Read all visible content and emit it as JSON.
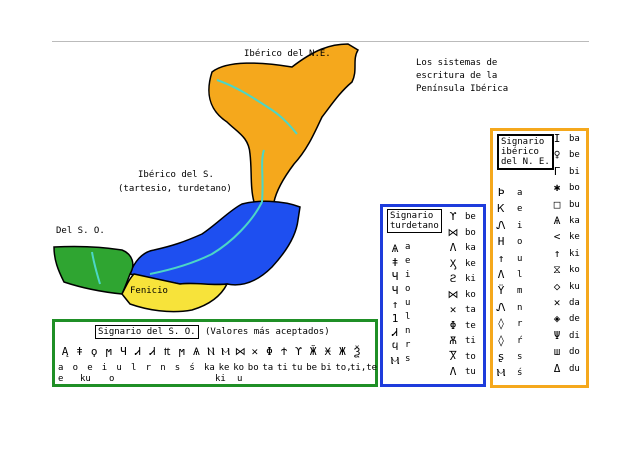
{
  "title_lines": [
    "Los sistemas de",
    "escritura de la",
    "Península Ibérica"
  ],
  "map_labels": {
    "iberico_ne": "Ibérico del N.E.",
    "iberico_s_line1": "Ibérico del S.",
    "iberico_s_line2": "(tartesio, turdetano)",
    "del_so": "Del S. O.",
    "fenicio": "Fenicio"
  },
  "colors": {
    "ne_region": "#f5a81c",
    "south_region": "#1e4ff0",
    "so_region": "#2fa531",
    "fenicio_region": "#f7e33a",
    "river": "#4cd6c6",
    "ne_box": "#f5a81c",
    "turdetano_box": "#1e3cdc",
    "so_box": "#1f8f26"
  },
  "so_panel": {
    "header": "Signario del S. O.",
    "note": "(Valores más aceptados)",
    "glyphs": [
      "Ą",
      "ǂ",
      "ϙ",
      "ϻ",
      "Ч",
      "Ꮧ",
      "Ꮧ",
      "₶",
      "ϻ",
      "Ѧ",
      "Ⲛ",
      "Ⲙ",
      "⋈",
      "✕",
      "Φ",
      "Ϯ",
      "ϒ",
      "Ӂ",
      "Ӿ",
      "Ж",
      "Ѯ"
    ],
    "sounds": [
      "a",
      "o",
      "e",
      "i",
      "u",
      "l",
      "r",
      "n",
      "s",
      "ś",
      "ka",
      "ke",
      "ko",
      "bo",
      "ta",
      "ti",
      "tu",
      "be",
      "bi",
      "to,",
      "ti,te"
    ],
    "sounds_row2": [
      "e",
      "ku",
      "o",
      "ki",
      "u"
    ]
  },
  "turdetano_panel": {
    "header_line1": "Signario",
    "header_line2": "turdetano",
    "vowels": [
      {
        "glyph": "Ѧ",
        "sound": "a"
      },
      {
        "glyph": "ǂ",
        "sound": "e"
      },
      {
        "glyph": "Ч",
        "sound": "i"
      },
      {
        "glyph": "Ч",
        "sound": "o"
      },
      {
        "glyph": "↑",
        "sound": "u"
      },
      {
        "glyph": "1",
        "sound": "l"
      },
      {
        "glyph": "Ꮧ",
        "sound": "n"
      },
      {
        "glyph": "ϥ",
        "sound": "r"
      },
      {
        "glyph": "Ⲙ",
        "sound": "s"
      }
    ],
    "syllables": [
      {
        "glyph": "ϒ",
        "sound": "be"
      },
      {
        "glyph": "⋈",
        "sound": "bo"
      },
      {
        "glyph": "Λ",
        "sound": "ka"
      },
      {
        "glyph": "Ӽ",
        "sound": "ke"
      },
      {
        "glyph": "ϩ",
        "sound": "ki"
      },
      {
        "glyph": "⋈",
        "sound": "ko"
      },
      {
        "glyph": "✕",
        "sound": "ta"
      },
      {
        "glyph": "Φ",
        "sound": "te"
      },
      {
        "glyph": "Ѫ",
        "sound": "ti"
      },
      {
        "glyph": "Ⴟ",
        "sound": "to"
      },
      {
        "glyph": "Λ",
        "sound": "tu"
      }
    ]
  },
  "ne_panel": {
    "header_line1": "Signario",
    "header_line2": "ibérico",
    "header_line3": "del N. E.",
    "left": [
      {
        "glyph": "Þ",
        "sound": "a"
      },
      {
        "glyph": "Ꮶ",
        "sound": "e"
      },
      {
        "glyph": "Ꮑ",
        "sound": "i"
      },
      {
        "glyph": "Н",
        "sound": "o"
      },
      {
        "glyph": "↑",
        "sound": "u"
      },
      {
        "glyph": "Λ",
        "sound": "l"
      },
      {
        "glyph": "Ϋ",
        "sound": "m"
      },
      {
        "glyph": "Ꮑ",
        "sound": "n"
      },
      {
        "glyph": "◊",
        "sound": "r"
      },
      {
        "glyph": "◊",
        "sound": "ŕ"
      },
      {
        "glyph": "ʂ",
        "sound": "s"
      },
      {
        "glyph": "Ⲙ",
        "sound": "ś"
      }
    ],
    "right": [
      {
        "glyph": "I",
        "sound": "ba"
      },
      {
        "glyph": "♀",
        "sound": "be"
      },
      {
        "glyph": "Γ",
        "sound": "bi"
      },
      {
        "glyph": "✱",
        "sound": "bo"
      },
      {
        "glyph": "□",
        "sound": "bu"
      },
      {
        "glyph": "Ѧ",
        "sound": "ka"
      },
      {
        "glyph": "<",
        "sound": "ke"
      },
      {
        "glyph": "↑",
        "sound": "ki"
      },
      {
        "glyph": "⧖",
        "sound": "ko"
      },
      {
        "glyph": "◇",
        "sound": "ku"
      },
      {
        "glyph": "✕",
        "sound": "da"
      },
      {
        "glyph": "◈",
        "sound": "de"
      },
      {
        "glyph": "Ψ",
        "sound": "di"
      },
      {
        "glyph": "ш",
        "sound": "do"
      },
      {
        "glyph": "Δ",
        "sound": "du"
      }
    ]
  }
}
